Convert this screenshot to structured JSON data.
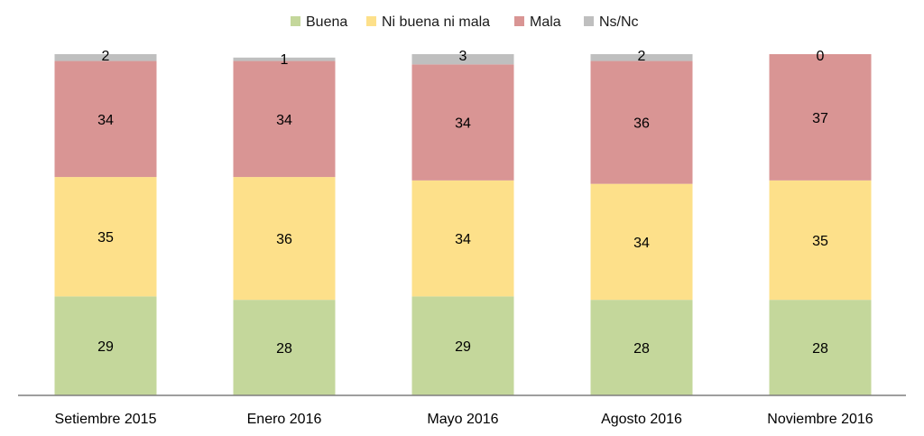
{
  "chart_data": {
    "type": "bar",
    "stacked": true,
    "categories": [
      "Setiembre 2015",
      "Enero 2016",
      "Mayo 2016",
      "Agosto 2016",
      "Noviembre 2016"
    ],
    "series": [
      {
        "name": "Buena",
        "color": "#c4d79b",
        "values": [
          29,
          28,
          29,
          28,
          28
        ]
      },
      {
        "name": "Ni buena ni mala",
        "color": "#fde08a",
        "values": [
          35,
          36,
          34,
          34,
          35
        ]
      },
      {
        "name": "Mala",
        "color": "#d99594",
        "values": [
          34,
          34,
          34,
          36,
          37
        ]
      },
      {
        "name": "Ns/Nc",
        "color": "#bfbfbf",
        "values": [
          2,
          1,
          3,
          2,
          0
        ]
      }
    ],
    "legend_position": "top",
    "axis_color": "#7f7f7f",
    "grid": false,
    "ylim": [
      0,
      100
    ]
  }
}
